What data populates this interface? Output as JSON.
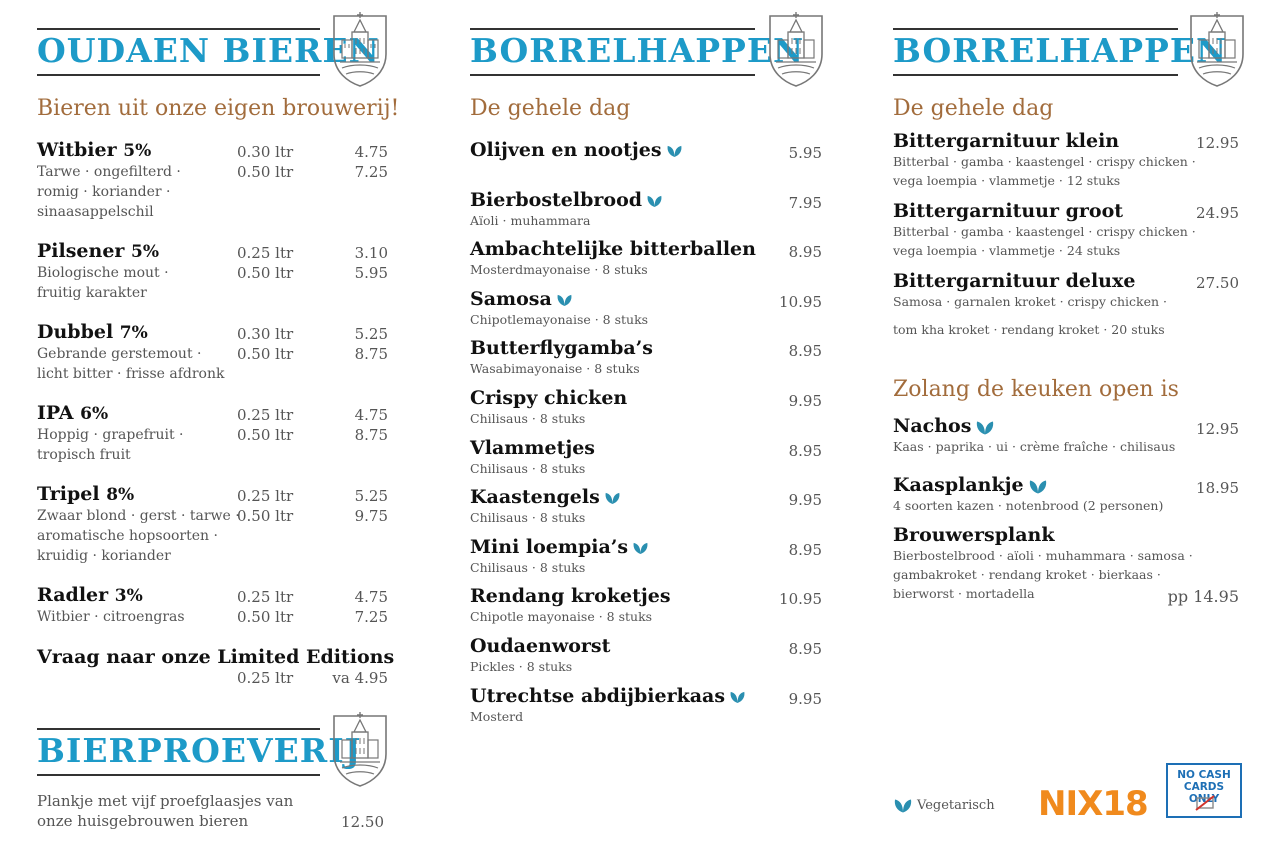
{
  "col1": {
    "title": "OUDAEN BIEREN",
    "subtitle": "Bieren uit onze eigen brouwerij!",
    "beers": [
      {
        "name": "Witbier",
        "pct": "5%",
        "desc": [
          "Tarwe · ongefilterd ·",
          "romig · koriander ·",
          "sinaasappelschil"
        ],
        "vol1": "0.30 ltr",
        "price1": "4.75",
        "vol2": "0.50 ltr",
        "price2": "7.25"
      },
      {
        "name": "Pilsener",
        "pct": "5%",
        "desc": [
          "Biologische mout ·",
          "fruitig karakter"
        ],
        "vol1": "0.25 ltr",
        "price1": "3.10",
        "vol2": "0.50 ltr",
        "price2": "5.95"
      },
      {
        "name": "Dubbel",
        "pct": "7%",
        "desc": [
          "Gebrande gerstemout ·",
          "licht bitter · frisse afdronk"
        ],
        "vol1": "0.30 ltr",
        "price1": "5.25",
        "vol2": "0.50 ltr",
        "price2": "8.75"
      },
      {
        "name": "IPA",
        "pct": "6%",
        "desc": [
          "Hoppig · grapefruit ·",
          "tropisch fruit"
        ],
        "vol1": "0.25 ltr",
        "price1": "4.75",
        "vol2": "0.50 ltr",
        "price2": "8.75"
      },
      {
        "name": "Tripel",
        "pct": "8%",
        "desc": [
          "Zwaar blond · gerst · tarwe ·",
          "aromatische hopsoorten ·",
          "kruidig · koriander"
        ],
        "vol1": "0.25 ltr",
        "price1": "5.25",
        "vol2": "0.50 ltr",
        "price2": "9.75"
      },
      {
        "name": "Radler",
        "pct": "3%",
        "desc": [
          "Witbier · citroengras"
        ],
        "vol1": "0.25 ltr",
        "price1": "4.75",
        "vol2": "0.50 ltr",
        "price2": "7.25"
      }
    ],
    "limited": {
      "name": "Vraag naar onze Limited Editions",
      "vol": "0.25 ltr",
      "price": "va 4.95"
    },
    "tasting": {
      "title": "BIERPROEVERIJ",
      "desc": [
        "Plankje met vijf proefglaasjes van",
        "onze huisgebrouwen bieren"
      ],
      "price": "12.50"
    }
  },
  "col2": {
    "title": "BORRELHAPPEN",
    "subtitle": "De gehele dag",
    "items": [
      {
        "name": "Olijven en nootjes",
        "veg": true,
        "desc": "",
        "price": "5.95"
      },
      {
        "name": "Bierbostelbrood",
        "veg": true,
        "desc": "Aïoli · muhammara",
        "price": "7.95"
      },
      {
        "name": "Ambachtelijke bitterballen",
        "veg": false,
        "desc": "Mosterdmayonaise · 8 stuks",
        "price": "8.95"
      },
      {
        "name": "Samosa",
        "veg": true,
        "desc": "Chipotlemayonaise · 8 stuks",
        "price": "10.95"
      },
      {
        "name": "Butterflygamba’s",
        "veg": false,
        "desc": "Wasabimayonaise · 8 stuks",
        "price": "8.95"
      },
      {
        "name": "Crispy chicken",
        "veg": false,
        "desc": "Chilisaus · 8 stuks",
        "price": "9.95"
      },
      {
        "name": "Vlammetjes",
        "veg": false,
        "desc": "Chilisaus · 8 stuks",
        "price": "8.95"
      },
      {
        "name": "Kaastengels",
        "veg": true,
        "desc": "Chilisaus · 8 stuks",
        "price": "9.95"
      },
      {
        "name": "Mini loempia’s",
        "veg": true,
        "desc": "Chilisaus · 8 stuks",
        "price": "8.95"
      },
      {
        "name": "Rendang kroketjes",
        "veg": false,
        "desc": "Chipotle mayonaise · 8 stuks",
        "price": "10.95"
      },
      {
        "name": "Oudaenworst",
        "veg": false,
        "desc": "Pickles · 8 stuks",
        "price": "8.95"
      },
      {
        "name": "Utrechtse abdijbierkaas",
        "veg": true,
        "desc": "Mosterd",
        "price": "9.95"
      }
    ]
  },
  "col3": {
    "title": "BORRELHAPPEN",
    "subtitle": "De gehele dag",
    "items": [
      {
        "name": "Bittergarnituur klein",
        "desc": [
          "Bitterbal · gamba · kaastengel · crispy chicken ·",
          "vega loempia · vlammetje · 12 stuks"
        ],
        "price": "12.95"
      },
      {
        "name": "Bittergarnituur groot",
        "desc": [
          "Bitterbal · gamba · kaastengel · crispy chicken ·",
          "vega loempia · vlammetje · 24 stuks"
        ],
        "price": "24.95"
      },
      {
        "name": "Bittergarnituur deluxe",
        "desc": [
          "Samosa · garnalen kroket · crispy chicken ·",
          "tom kha kroket · rendang kroket · 20 stuks"
        ],
        "price": "27.50"
      }
    ],
    "subtitle2": "Zolang de keuken open is",
    "items2": [
      {
        "name": "Nachos",
        "veg": true,
        "desc": [
          "Kaas · paprika · ui · crème fraîche · chilisaus"
        ],
        "price": "12.95"
      },
      {
        "name": "Kaasplankje",
        "veg": true,
        "desc": [
          "4 soorten kazen · notenbrood (2 personen)"
        ],
        "price": "18.95"
      },
      {
        "name": "Brouwersplank",
        "veg": false,
        "desc": [
          "Bierbostelbrood · aïoli · muhammara · samosa ·",
          "gambakroket · rendang kroket · bierkaas ·",
          "bierworst · mortadella"
        ],
        "price": "pp 14.95"
      }
    ]
  },
  "footer": {
    "legend": "Vegetarisch",
    "nix": "NIX18",
    "cash_line1": "NO CASH",
    "cash_line2": "CARDS ONLY"
  },
  "colors": {
    "title": "#1d9ac8",
    "subtitle": "#a26c3c",
    "leaf": "#2a8fb0",
    "nix_orange": "#f08a1d",
    "cash_blue": "#1d6fb5"
  }
}
